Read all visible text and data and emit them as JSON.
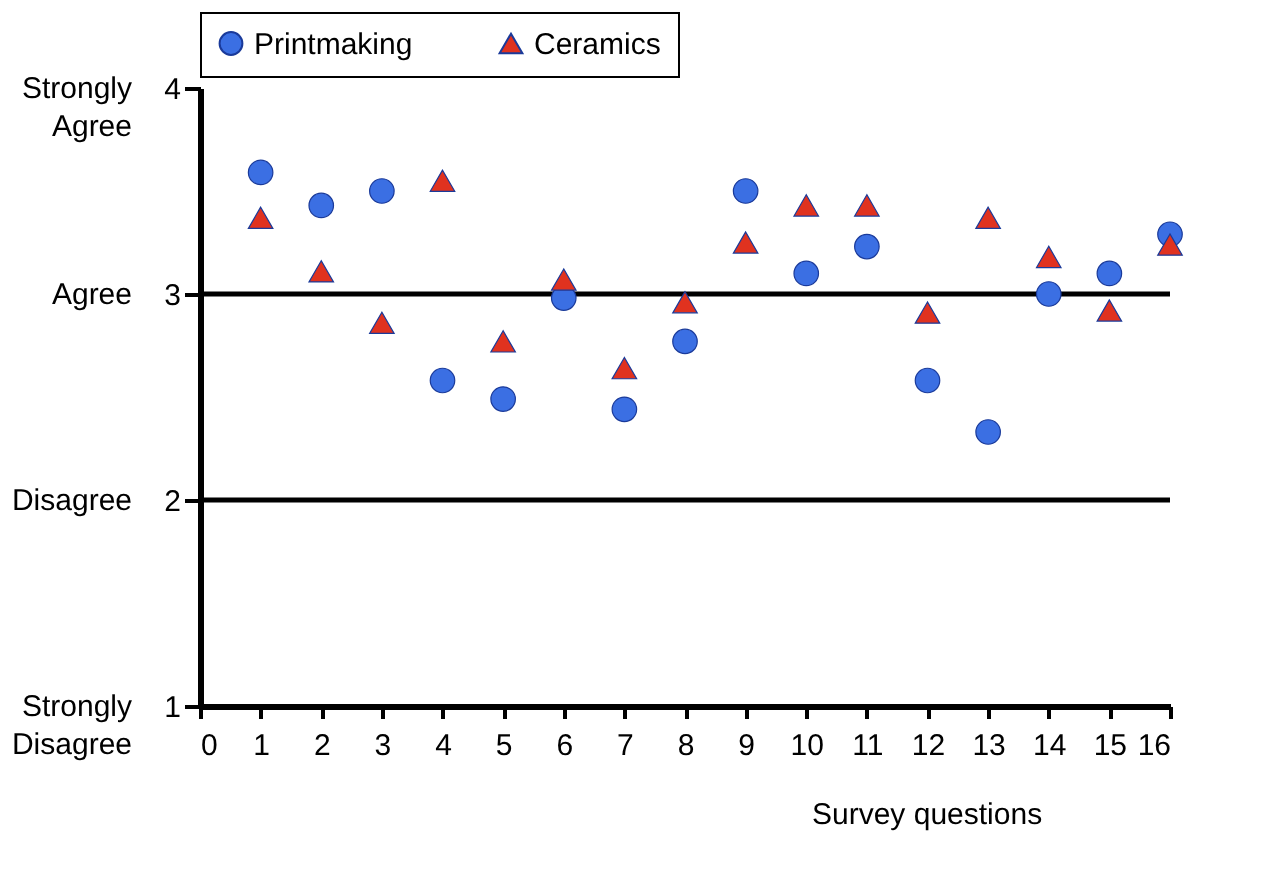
{
  "chart_data": {
    "type": "scatter",
    "xlabel": "Survey questions",
    "x": [
      1,
      2,
      3,
      4,
      5,
      6,
      7,
      8,
      9,
      10,
      11,
      12,
      13,
      14,
      15,
      16
    ],
    "series": [
      {
        "name": "Printmaking",
        "color": "#3b6fe3",
        "marker": "circle",
        "values": [
          3.59,
          3.43,
          3.5,
          2.58,
          2.49,
          2.98,
          2.44,
          2.77,
          3.5,
          3.1,
          3.23,
          2.58,
          2.33,
          3.0,
          3.1,
          3.29
        ]
      },
      {
        "name": "Ceramics",
        "color": "#e0321f",
        "marker": "triangle",
        "values": [
          3.37,
          3.11,
          2.86,
          3.55,
          2.77,
          3.07,
          2.64,
          2.96,
          3.25,
          3.43,
          3.43,
          2.91,
          3.37,
          3.18,
          2.92,
          3.24
        ]
      }
    ],
    "xlim": [
      0,
      16
    ],
    "xticks": [
      0,
      1,
      2,
      3,
      4,
      5,
      6,
      7,
      8,
      9,
      10,
      11,
      12,
      13,
      14,
      15,
      16
    ],
    "ylim": [
      1,
      4
    ],
    "yticks": [
      1,
      2,
      3,
      4
    ],
    "annotations": [
      "Strongly\nDisagree",
      "Disagree",
      "Agree",
      "Strongly\nAgree"
    ],
    "ref_lines": [
      {
        "axis": "y",
        "value": 2,
        "color": "#000000"
      },
      {
        "axis": "y",
        "value": 3,
        "color": "#000000"
      }
    ],
    "grid": false,
    "legend": "top"
  }
}
